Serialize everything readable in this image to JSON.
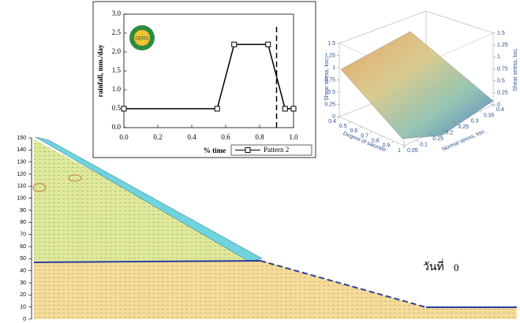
{
  "rainfall_chart": {
    "type": "line",
    "y_label": "rainfall, mm./day",
    "x_label": "% time",
    "x": [
      0,
      0.55,
      0.65,
      0.85,
      0.95,
      1.0
    ],
    "series": [
      {
        "name": "Pattern 2",
        "color": "#000000",
        "values": [
          0.5,
          0.5,
          2.2,
          2.2,
          0.5,
          0.5
        ]
      }
    ],
    "xlim": [
      0,
      1.0
    ],
    "ylim": [
      0,
      3.0
    ],
    "xticks": [
      {
        "value": 0,
        "label": "0.0"
      },
      0.2,
      0.4,
      0.6,
      0.8,
      {
        "value": 1,
        "label": "1.0"
      }
    ],
    "yticks": [
      {
        "value": 0,
        "label": "0.0"
      },
      0.5,
      {
        "value": 1,
        "label": "1.0"
      },
      1.5,
      {
        "value": 2,
        "label": "2.0"
      },
      2.5,
      {
        "value": 3,
        "label": "3.0"
      }
    ],
    "marker": {
      "x": 0.9,
      "top": 2.75
    },
    "logo": "GERD"
  },
  "surface_chart": {
    "type": "surface3d",
    "z_label": "Shear stress, ksc.",
    "z2_label": "Shear stress, ksc.",
    "x_label": "Degree of saturate",
    "y_label": "Normal stress, ksc.",
    "zlim": [
      0,
      1.5
    ],
    "zticks": [
      0,
      0.25,
      0.5,
      0.75,
      1,
      1.25,
      1.5
    ],
    "xlim": [
      0.4,
      1
    ],
    "xticks": [
      0.4,
      0.5,
      0.6,
      0.7,
      0.8,
      0.9,
      1
    ],
    "ylim": [
      0.05,
      0.4
    ],
    "yticks": [
      0.05,
      0.1,
      0.15,
      0.2,
      0.25,
      0.3,
      0.35,
      0.4
    ]
  },
  "section": {
    "type": "seepage",
    "ylim": [
      0,
      150
    ],
    "yticks": [
      0,
      10,
      20,
      30,
      40,
      50,
      60,
      70,
      80,
      90,
      100,
      110,
      120,
      130,
      140,
      150
    ],
    "day_label": "วันที่",
    "day": 0
  }
}
